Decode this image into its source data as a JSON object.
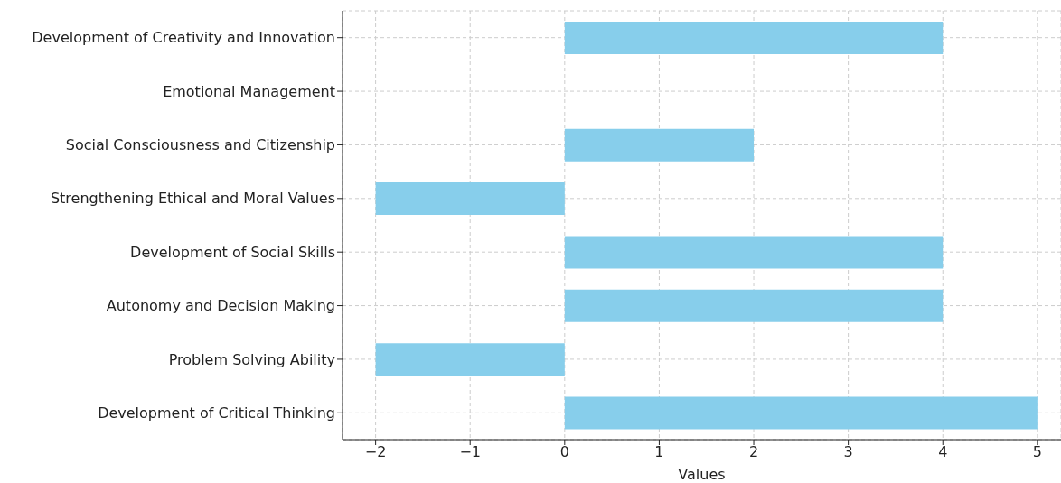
{
  "chart_data": {
    "type": "bar",
    "orientation": "horizontal",
    "xlabel": "Values",
    "categories": [
      "Development of Creativity and Innovation",
      "Emotional Management",
      "Social Consciousness and Citizenship",
      "Strengthening Ethical and Moral Values",
      "Development of Social Skills",
      "Autonomy and Decision Making",
      "Problem Solving Ability",
      "Development of Critical Thinking"
    ],
    "values": [
      4,
      0,
      2,
      -2,
      4,
      4,
      -2,
      5
    ],
    "color": "#87ceeb",
    "xlim": [
      -2.35,
      5.25
    ],
    "xticks": [
      {
        "value": -2,
        "label": "−2"
      },
      {
        "value": -1,
        "label": "−1"
      },
      0,
      1,
      2,
      3,
      4,
      5
    ],
    "grid": true
  }
}
